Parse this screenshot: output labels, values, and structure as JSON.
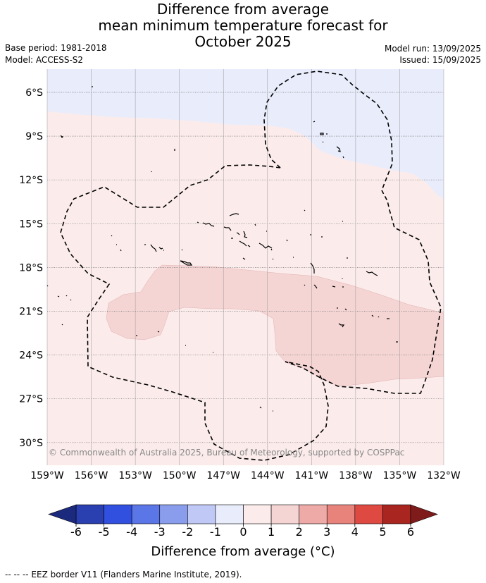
{
  "title": {
    "line1": "Difference from average",
    "line2": "mean minimum temperature forecast for",
    "line3": "October 2025"
  },
  "meta": {
    "base_period": "Base period: 1981-2018",
    "model": "Model: ACCESS-S2",
    "model_run": "Model run: 13/09/2025",
    "issued": "Issued: 15/09/2025"
  },
  "map": {
    "lat_labels": [
      "6°S",
      "9°S",
      "12°S",
      "15°S",
      "18°S",
      "21°S",
      "24°S",
      "27°S",
      "30°S"
    ],
    "lon_labels": [
      "159°W",
      "156°W",
      "153°W",
      "150°W",
      "147°W",
      "144°W",
      "141°W",
      "138°W",
      "135°W",
      "132°W"
    ],
    "copyright": "© Commonwealth of Australia 2025, Bureau of Meteorology, supported by COSPPac",
    "colors": {
      "anomaly_minus1_0": "#e8ecfb",
      "anomaly_0_1": "#fbeceb",
      "anomaly_1_2": "#f4d5d4"
    }
  },
  "colorbar": {
    "ticks": [
      "-6",
      "-5",
      "-4",
      "-3",
      "-2",
      "-1",
      "0",
      "1",
      "2",
      "3",
      "4",
      "5",
      "6"
    ],
    "label": "Difference from average (°C)",
    "extend_low_color": "#1b2a7d",
    "extend_high_color": "#7f1b1b",
    "colors": [
      "#2a3fb0",
      "#3150e0",
      "#5b76e6",
      "#8a9ded",
      "#c0c8f5",
      "#e8ecfb",
      "#fbeceb",
      "#f4d5d4",
      "#eeaaa6",
      "#e8837c",
      "#de4a41",
      "#a82520"
    ]
  },
  "footer": {
    "legend_text": "-- -- -- EEZ border V11 (Flanders Marine Institute, 2019)."
  }
}
